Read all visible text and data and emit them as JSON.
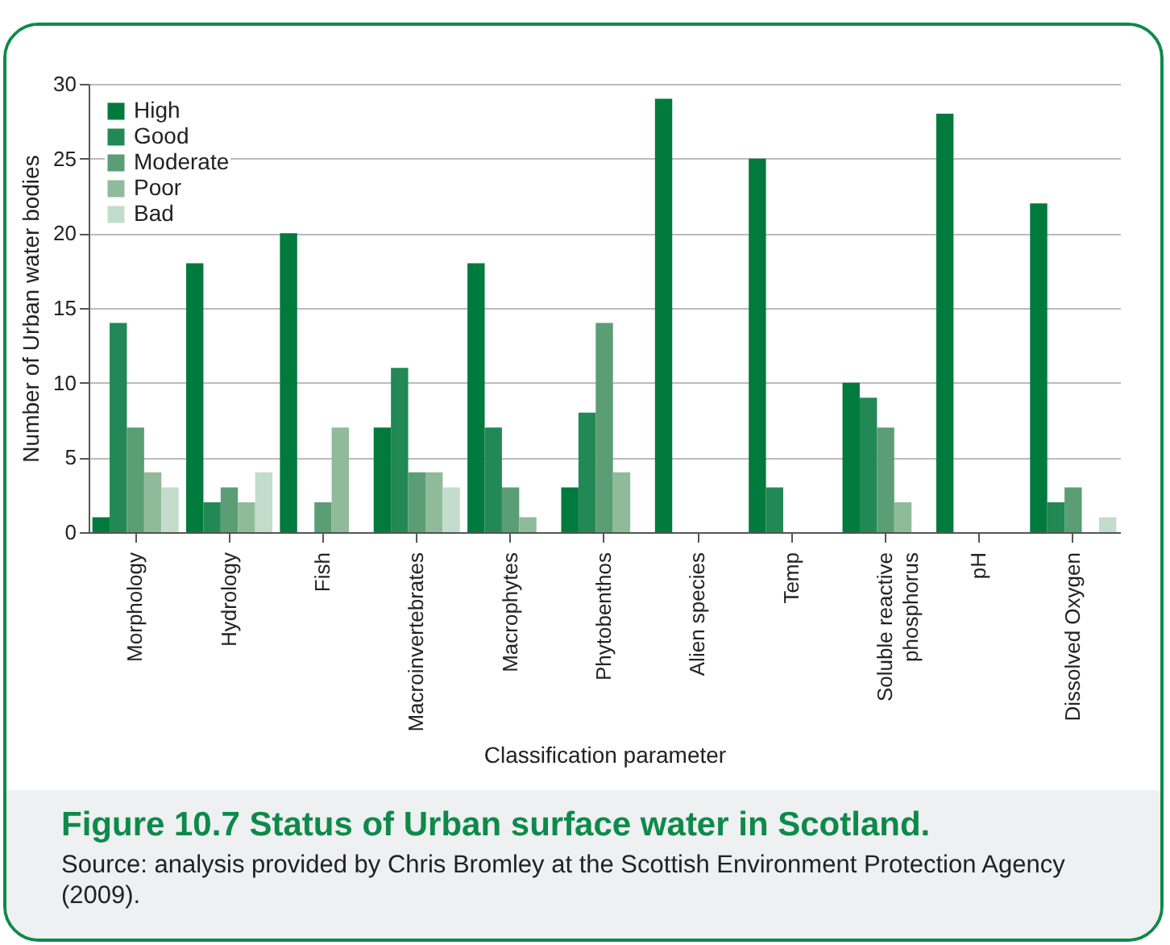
{
  "chart_data": {
    "type": "bar",
    "title": "Figure 10.7 Status of Urban surface water in Scotland.",
    "xlabel": "Classification parameter",
    "ylabel": "Number of Urban water bodies",
    "annotations": [
      "Source: analysis provided by Chris Bromley at the Scottish Environment Protection Agency (2009)."
    ],
    "categories": [
      "Morphology",
      "Hydrology",
      "Fish",
      "Macroinvertebrates",
      "Macrophytes",
      "Phytobenthos",
      "Alien species",
      "Temp",
      "Soluble reactive phosphorus",
      "pH",
      "Dissolved Oxygen"
    ],
    "series": [
      {
        "name": "High",
        "color": "#007a3d",
        "values": [
          1,
          18,
          20,
          7,
          18,
          3,
          29,
          25,
          10,
          28,
          22
        ]
      },
      {
        "name": "Good",
        "color": "#228855",
        "values": [
          14,
          2,
          0,
          11,
          7,
          8,
          0,
          3,
          9,
          0,
          2
        ]
      },
      {
        "name": "Moderate",
        "color": "#5b9e75",
        "values": [
          7,
          3,
          2,
          4,
          3,
          14,
          0,
          0,
          7,
          0,
          3
        ]
      },
      {
        "name": "Poor",
        "color": "#8fbb9b",
        "values": [
          4,
          2,
          7,
          4,
          1,
          4,
          0,
          0,
          2,
          0,
          0
        ]
      },
      {
        "name": "Bad",
        "color": "#c3dccb",
        "values": [
          3,
          4,
          0,
          3,
          0,
          0,
          0,
          0,
          0,
          0,
          1
        ]
      }
    ],
    "ylim": [
      0,
      30
    ],
    "yticks": [
      0,
      5,
      10,
      15,
      20,
      25,
      30
    ],
    "grid": "y",
    "legend": "top left"
  }
}
